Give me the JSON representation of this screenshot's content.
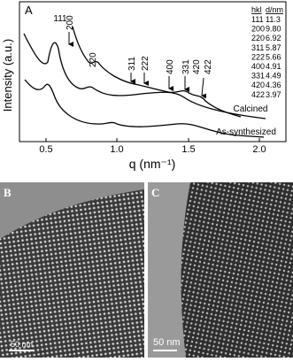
{
  "panel_a": {
    "label": "A",
    "y_axis_label": "Intensity (a.u.)",
    "x_axis_label": "q (nm⁻¹)",
    "x_ticks": [
      "0.5",
      "1.0",
      "1.5",
      "2.0"
    ],
    "peak_labels": [
      "111",
      "200",
      "220",
      "311",
      "222",
      "400",
      "331",
      "420",
      "422"
    ],
    "table": {
      "header": [
        "hkl",
        "d/nm"
      ],
      "rows": [
        [
          "111",
          "11.3"
        ],
        [
          "200",
          "9.80"
        ],
        [
          "220",
          "6.92"
        ],
        [
          "311",
          "5.87"
        ],
        [
          "222",
          "5.66"
        ],
        [
          "400",
          "4.91"
        ],
        [
          "331",
          "4.49"
        ],
        [
          "420",
          "4.36"
        ],
        [
          "422",
          "3.97"
        ]
      ]
    },
    "curve_labels": [
      "Calcined",
      "As-synthesized"
    ]
  },
  "panel_b": {
    "label": "B",
    "scale_bar": "50 nm"
  },
  "panel_c": {
    "label": "C",
    "scale_bar": "50 nm"
  }
}
